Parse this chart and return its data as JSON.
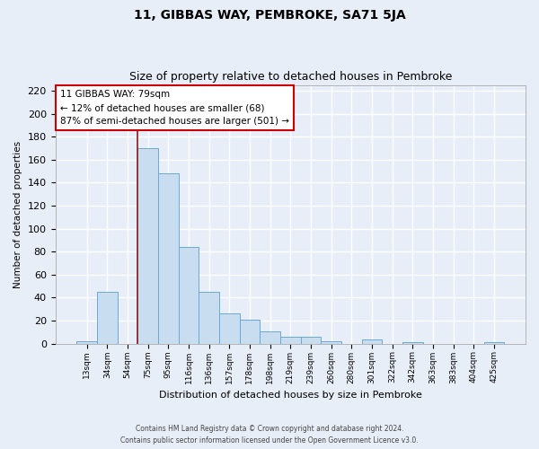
{
  "title": "11, GIBBAS WAY, PEMBROKE, SA71 5JA",
  "subtitle": "Size of property relative to detached houses in Pembroke",
  "xlabel": "Distribution of detached houses by size in Pembroke",
  "ylabel": "Number of detached properties",
  "bar_labels": [
    "13sqm",
    "34sqm",
    "54sqm",
    "75sqm",
    "95sqm",
    "116sqm",
    "136sqm",
    "157sqm",
    "178sqm",
    "198sqm",
    "219sqm",
    "239sqm",
    "260sqm",
    "280sqm",
    "301sqm",
    "322sqm",
    "342sqm",
    "363sqm",
    "383sqm",
    "404sqm",
    "425sqm"
  ],
  "bar_values": [
    2,
    45,
    0,
    170,
    148,
    84,
    45,
    26,
    21,
    11,
    6,
    6,
    2,
    0,
    4,
    0,
    1,
    0,
    0,
    0,
    1
  ],
  "bar_color": "#c9ddf0",
  "bar_edge_color": "#6aaad4",
  "ylim": [
    0,
    225
  ],
  "yticks": [
    0,
    20,
    40,
    60,
    80,
    100,
    120,
    140,
    160,
    180,
    200,
    220
  ],
  "vline_index": 3,
  "vline_color": "#8b1a1a",
  "annotation_text": "11 GIBBAS WAY: 79sqm\n← 12% of detached houses are smaller (68)\n87% of semi-detached houses are larger (501) →",
  "annotation_box_color": "white",
  "annotation_box_edge_color": "#cc0000",
  "footer_line1": "Contains HM Land Registry data © Crown copyright and database right 2024.",
  "footer_line2": "Contains public sector information licensed under the Open Government Licence v3.0.",
  "background_color": "#e8eef8",
  "plot_bg_color": "#e8eef8",
  "grid_color": "white",
  "title_fontsize": 10,
  "subtitle_fontsize": 9
}
